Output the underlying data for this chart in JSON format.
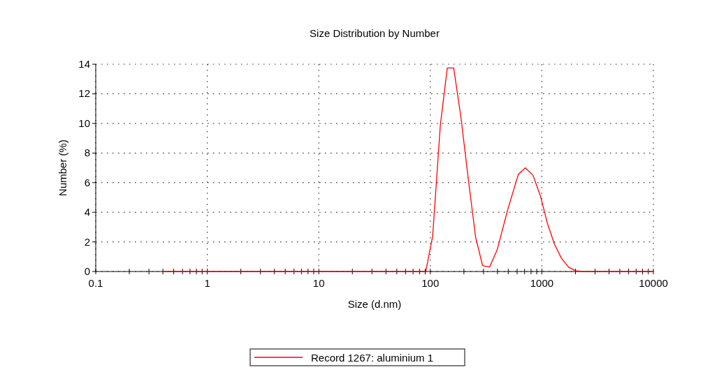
{
  "chart_data": {
    "type": "line",
    "title": "Size Distribution by Number",
    "xlabel": "Size (d.nm)",
    "ylabel": "Number (%)",
    "log": "x",
    "grid": true,
    "legend": "bottom",
    "line_style": "solid",
    "marker": "none",
    "xlim": [
      0.1,
      10000
    ],
    "xticks": [
      0.1,
      {
        "value": 0.2,
        "label": null
      },
      {
        "value": 0.3,
        "label": null
      },
      {
        "value": 0.4,
        "label": null
      },
      {
        "value": 0.5,
        "label": null
      },
      {
        "value": 0.6,
        "label": null
      },
      {
        "value": 0.7,
        "label": null
      },
      {
        "value": 0.8,
        "label": null
      },
      {
        "value": 0.9,
        "label": null
      },
      1,
      {
        "value": 2,
        "label": null
      },
      {
        "value": 3,
        "label": null
      },
      {
        "value": 4,
        "label": null
      },
      {
        "value": 5,
        "label": null
      },
      {
        "value": 6,
        "label": null
      },
      {
        "value": 7,
        "label": null
      },
      {
        "value": 8,
        "label": null
      },
      {
        "value": 9,
        "label": null
      },
      10,
      {
        "value": 20,
        "label": null
      },
      {
        "value": 30,
        "label": null
      },
      {
        "value": 40,
        "label": null
      },
      {
        "value": 50,
        "label": null
      },
      {
        "value": 60,
        "label": null
      },
      {
        "value": 70,
        "label": null
      },
      {
        "value": 80,
        "label": null
      },
      {
        "value": 90,
        "label": null
      },
      100,
      {
        "value": 200,
        "label": null
      },
      {
        "value": 300,
        "label": null
      },
      {
        "value": 400,
        "label": null
      },
      {
        "value": 500,
        "label": null
      },
      {
        "value": 600,
        "label": null
      },
      {
        "value": 700,
        "label": null
      },
      {
        "value": 800,
        "label": null
      },
      {
        "value": 900,
        "label": null
      },
      1000,
      {
        "value": 2000,
        "label": null
      },
      {
        "value": 3000,
        "label": null
      },
      {
        "value": 4000,
        "label": null
      },
      {
        "value": 5000,
        "label": null
      },
      {
        "value": 6000,
        "label": null
      },
      {
        "value": 7000,
        "label": null
      },
      {
        "value": 8000,
        "label": null
      },
      {
        "value": 9000,
        "label": null
      },
      10000
    ],
    "ylim": [
      0,
      14
    ],
    "yticks": [
      0,
      2,
      4,
      6,
      8,
      10,
      12,
      14
    ],
    "series": [
      {
        "name": "Record 1267: aluminium 1",
        "color": "#ff0000",
        "x": [
          0.4,
          91,
          105,
          123,
          142,
          162,
          189,
          221,
          255,
          294,
          340,
          399,
          495,
          615,
          710,
          832,
          971,
          1122,
          1296,
          1496,
          1730,
          2000,
          2300,
          10000
        ],
        "values": [
          0,
          0,
          2.4,
          9.9,
          13.75,
          13.75,
          10.3,
          6.0,
          2.3,
          0.4,
          0.3,
          1.5,
          4.2,
          6.55,
          7.0,
          6.5,
          5.1,
          3.25,
          1.85,
          0.9,
          0.3,
          0.05,
          0,
          0
        ]
      }
    ]
  }
}
